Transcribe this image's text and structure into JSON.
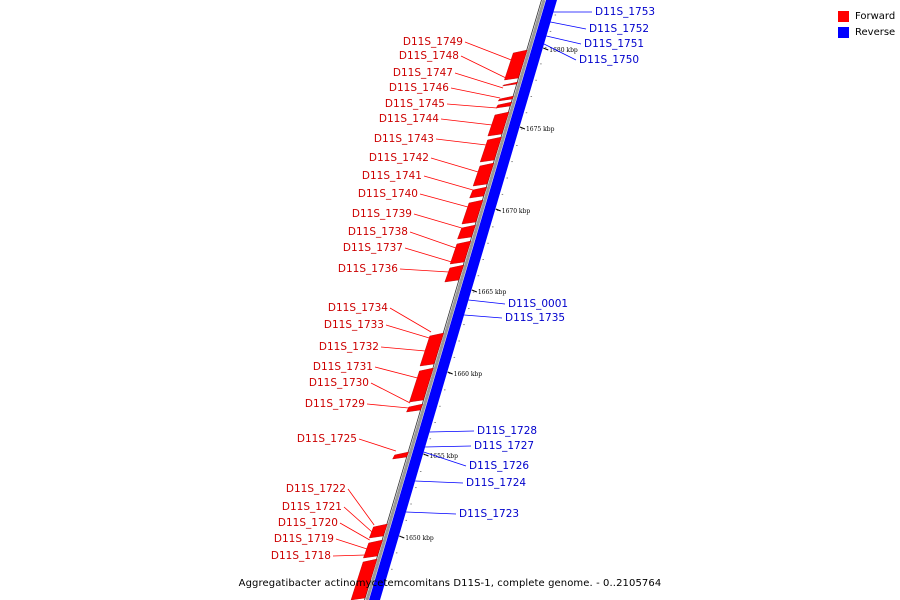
{
  "colors": {
    "forward": "#ff0000",
    "reverse": "#0000ff",
    "forward_label": "#cc0000",
    "reverse_label": "#0000cc",
    "backbone": "#999999"
  },
  "legend": [
    {
      "label": "Forward",
      "color": "#ff0000"
    },
    {
      "label": "Reverse",
      "color": "#0000ff"
    }
  ],
  "caption": "Aggregatibacter actinomycetemcomitans D11S-1, complete genome. - 0..2105764",
  "ruler": [
    {
      "label": "1680 kbp",
      "kbp": 1680
    },
    {
      "label": "1675 kbp",
      "kbp": 1675
    },
    {
      "label": "1670 kbp",
      "kbp": 1670
    },
    {
      "label": "1665 kbp",
      "kbp": 1665
    },
    {
      "label": "1660 kbp",
      "kbp": 1660
    },
    {
      "label": "1655 kbp",
      "kbp": 1655
    },
    {
      "label": "1650 kbp",
      "kbp": 1650
    }
  ],
  "forward_genes": [
    {
      "label": "D11S_1749"
    },
    {
      "label": "D11S_1748"
    },
    {
      "label": "D11S_1747"
    },
    {
      "label": "D11S_1746"
    },
    {
      "label": "D11S_1745"
    },
    {
      "label": "D11S_1744"
    },
    {
      "label": "D11S_1743"
    },
    {
      "label": "D11S_1742"
    },
    {
      "label": "D11S_1741"
    },
    {
      "label": "D11S_1740"
    },
    {
      "label": "D11S_1739"
    },
    {
      "label": "D11S_1738"
    },
    {
      "label": "D11S_1737"
    },
    {
      "label": "D11S_1736"
    },
    {
      "label": "D11S_1734"
    },
    {
      "label": "D11S_1733"
    },
    {
      "label": "D11S_1732"
    },
    {
      "label": "D11S_1731"
    },
    {
      "label": "D11S_1730"
    },
    {
      "label": "D11S_1729"
    },
    {
      "label": "D11S_1725"
    },
    {
      "label": "D11S_1722"
    },
    {
      "label": "D11S_1721"
    },
    {
      "label": "D11S_1720"
    },
    {
      "label": "D11S_1719"
    },
    {
      "label": "D11S_1718"
    }
  ],
  "reverse_genes": [
    {
      "label": "D11S_1753"
    },
    {
      "label": "D11S_1752"
    },
    {
      "label": "D11S_1751"
    },
    {
      "label": "D11S_1750"
    },
    {
      "label": "D11S_0001"
    },
    {
      "label": "D11S_1735"
    },
    {
      "label": "D11S_1728"
    },
    {
      "label": "D11S_1727"
    },
    {
      "label": "D11S_1726"
    },
    {
      "label": "D11S_1724"
    },
    {
      "label": "D11S_1723"
    }
  ]
}
